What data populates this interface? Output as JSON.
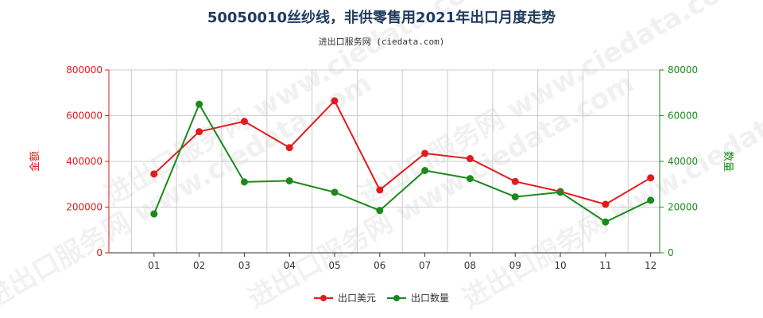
{
  "chart_data": {
    "type": "line",
    "title": "50050010丝纱线，非供零售用2021年出口月度走势",
    "subtitle": "进出口服务网 (ciedata.com)",
    "categories": [
      "01",
      "02",
      "03",
      "04",
      "05",
      "06",
      "07",
      "08",
      "09",
      "10",
      "11",
      "12"
    ],
    "y_left": {
      "label": "金额",
      "ticks": [
        "0",
        "200000",
        "400000",
        "600000",
        "800000"
      ],
      "range": [
        0,
        800000
      ]
    },
    "y_right": {
      "label": "数量",
      "ticks": [
        "0",
        "20000",
        "40000",
        "60000",
        "80000"
      ],
      "range": [
        0,
        80000
      ]
    },
    "series": [
      {
        "name": "出口美元",
        "axis": "left",
        "color": "#e31a1c",
        "values": [
          345000,
          530000,
          575000,
          460000,
          665000,
          275000,
          435000,
          412000,
          312000,
          268000,
          212000,
          328000
        ]
      },
      {
        "name": "出口数量",
        "axis": "right",
        "color": "#1a8a1a",
        "values": [
          17000,
          65000,
          31000,
          31500,
          26500,
          18500,
          36000,
          32500,
          24500,
          26500,
          13500,
          23000
        ]
      }
    ],
    "grid": true,
    "legend": "bottom-center",
    "watermark": "进出口服务网 www.ciedata.com"
  }
}
